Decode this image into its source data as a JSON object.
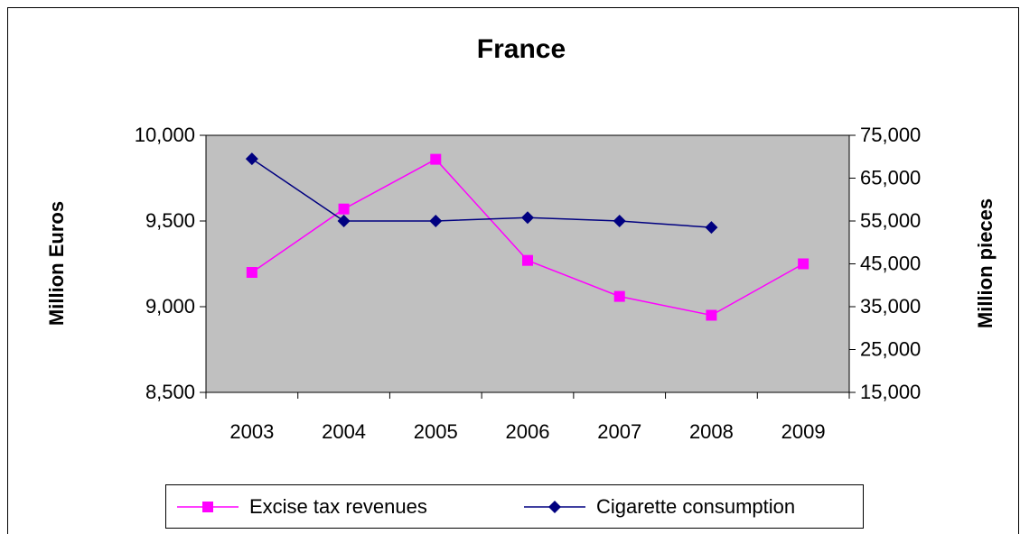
{
  "chart_data": {
    "type": "line",
    "title": "France",
    "categories": [
      "2003",
      "2004",
      "2005",
      "2006",
      "2007",
      "2008",
      "2009"
    ],
    "series": [
      {
        "name": "Excise tax revenues",
        "color": "#ff00ff",
        "marker": "square",
        "values": [
          9200,
          9570,
          9860,
          9270,
          9060,
          8950,
          9250
        ]
      },
      {
        "name": "Cigarette consumption",
        "color": "#000080",
        "marker": "diamond",
        "axis": "y2",
        "values": [
          69500,
          55000,
          55000,
          55800,
          55000,
          53500,
          null
        ]
      }
    ],
    "y_label": "Million Euros",
    "y2_label": "Million pieces",
    "ylim": [
      8500,
      10000
    ],
    "yticks": [
      {
        "value": 8500,
        "label": "8,500"
      },
      {
        "value": 9000,
        "label": "9,000"
      },
      {
        "value": 9500,
        "label": "9,500"
      },
      {
        "value": 10000,
        "label": "10,000"
      }
    ],
    "y2lim": [
      15000,
      75000
    ],
    "y2ticks": [
      {
        "value": 15000,
        "label": "15,000"
      },
      {
        "value": 25000,
        "label": "25,000"
      },
      {
        "value": 35000,
        "label": "35,000"
      },
      {
        "value": 45000,
        "label": "45,000"
      },
      {
        "value": 55000,
        "label": "55,000"
      },
      {
        "value": 65000,
        "label": "65,000"
      },
      {
        "value": 75000,
        "label": "75,000"
      }
    ],
    "plot_background": "#c0c0c0",
    "grid": false,
    "legend": "bottom"
  }
}
